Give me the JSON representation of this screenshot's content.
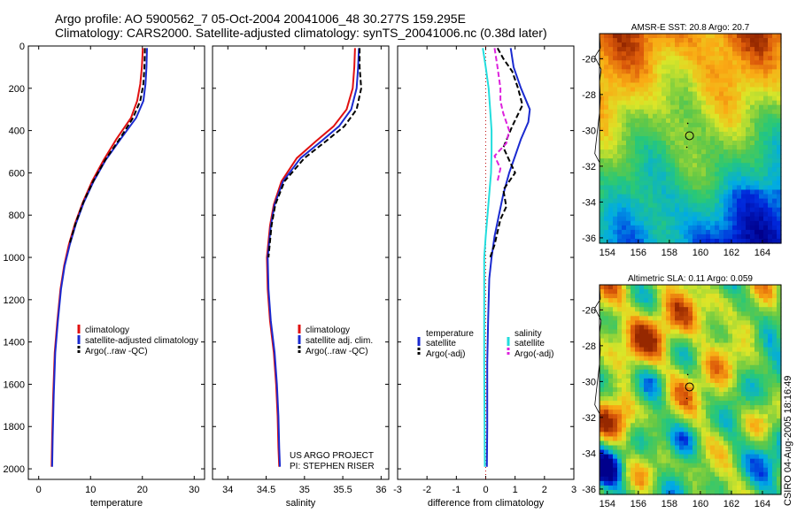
{
  "header": {
    "line1": "Argo profile: AO 5900562_7 05-Oct-2004 20041006_48 30.277S 159.295E",
    "line2": "Climatology: CARS2000. Satellite-adjusted climatology: synTS_20041006.nc (0.38d later)"
  },
  "credit": "CSIRO 04-Aug-2005 18:16:49",
  "colors": {
    "climatology": "#e01010",
    "satellite": "#1a2ad0",
    "argo": "#000000",
    "sal_sat": "#22dddd",
    "sal_argo": "#dd22dd"
  },
  "chart_data": [
    {
      "id": "temperature",
      "type": "line",
      "xlabel": "temperature",
      "ylabel": "",
      "xlim": [
        -2,
        32
      ],
      "ylim": [
        2050,
        0
      ],
      "xticks": [
        0,
        10,
        20,
        30
      ],
      "yticks": [
        0,
        200,
        400,
        600,
        800,
        1000,
        1200,
        1400,
        1600,
        1800,
        2000
      ],
      "series": [
        {
          "name": "climatology",
          "color": "#e01010",
          "dash": "",
          "x": [
            20.1,
            19.9,
            19.6,
            19.0,
            17.8,
            15.0,
            12.5,
            10.3,
            8.5,
            7.0,
            5.8,
            4.9,
            4.2,
            3.6,
            3.1,
            2.8,
            2.6,
            2.5
          ],
          "y": [
            10,
            100,
            180,
            260,
            340,
            440,
            540,
            640,
            740,
            840,
            940,
            1040,
            1150,
            1300,
            1450,
            1650,
            1850,
            1990
          ]
        },
        {
          "name": "satellite-adjusted climatology",
          "color": "#1a2ad0",
          "dash": "",
          "x": [
            20.9,
            20.8,
            20.6,
            20.2,
            18.8,
            15.8,
            12.9,
            10.6,
            8.7,
            7.2,
            6.0,
            5.0,
            4.3,
            3.7,
            3.2,
            2.9,
            2.7,
            2.6
          ],
          "y": [
            10,
            100,
            180,
            260,
            340,
            440,
            540,
            640,
            740,
            840,
            940,
            1040,
            1150,
            1300,
            1450,
            1650,
            1850,
            1990
          ]
        },
        {
          "name": "Argo(..raw -QC)",
          "color": "#000000",
          "dash": "6,3",
          "x": [
            20.5,
            20.4,
            20.2,
            19.6,
            18.2,
            15.6,
            12.8,
            10.5,
            8.6,
            7.1,
            5.9
          ],
          "y": [
            10,
            100,
            180,
            260,
            340,
            440,
            540,
            640,
            740,
            840,
            940
          ]
        }
      ],
      "legend": {
        "entries": [
          "climatology",
          "satellite-adjusted climatology",
          "Argo(..raw -QC)"
        ],
        "placement": "lower-middle"
      }
    },
    {
      "id": "salinity",
      "type": "line",
      "xlabel": "salinity",
      "xlim": [
        33.8,
        36.1
      ],
      "ylim": [
        2050,
        0
      ],
      "xticks": [
        34,
        34.5,
        35,
        35.5,
        36
      ],
      "series": [
        {
          "name": "climatology",
          "color": "#e01010",
          "dash": "",
          "x": [
            35.66,
            35.65,
            35.63,
            35.55,
            35.38,
            35.15,
            34.9,
            34.7,
            34.6,
            34.55,
            34.51,
            34.52,
            34.55,
            34.6,
            34.63,
            34.65,
            34.66,
            34.67
          ],
          "y": [
            10,
            100,
            200,
            300,
            380,
            450,
            530,
            640,
            750,
            850,
            1000,
            1150,
            1300,
            1450,
            1600,
            1750,
            1900,
            1990
          ]
        },
        {
          "name": "satellite adj. clim.",
          "color": "#1a2ad0",
          "dash": "",
          "x": [
            35.71,
            35.7,
            35.68,
            35.61,
            35.45,
            35.22,
            34.95,
            34.72,
            34.61,
            34.56,
            34.52,
            34.53,
            34.56,
            34.61,
            34.64,
            34.66,
            34.67,
            34.68
          ],
          "y": [
            10,
            100,
            200,
            300,
            380,
            450,
            530,
            640,
            750,
            850,
            1000,
            1150,
            1300,
            1450,
            1600,
            1750,
            1900,
            1990
          ]
        },
        {
          "name": "Argo(..raw -QC)",
          "color": "#000000",
          "dash": "6,3",
          "x": [
            35.72,
            35.72,
            35.74,
            35.68,
            35.52,
            35.28,
            35.0,
            34.74,
            34.62,
            34.57,
            34.53
          ],
          "y": [
            10,
            100,
            200,
            300,
            380,
            450,
            530,
            640,
            750,
            850,
            1000
          ]
        }
      ],
      "legend": {
        "entries": [
          "climatology",
          "satellite adj. clim.",
          "Argo(..raw -QC)"
        ],
        "placement": "lower-middle"
      },
      "annotation": [
        "US ARGO PROJECT",
        "PI: STEPHEN RISER"
      ]
    },
    {
      "id": "difference",
      "type": "line",
      "xlabel": "difference from climatology",
      "xlim": [
        -3,
        3
      ],
      "ylim": [
        2050,
        0
      ],
      "xticks": [
        -3,
        -2,
        -1,
        0,
        1,
        2,
        3
      ],
      "series": [
        {
          "name": "temperature satellite",
          "color": "#1a2ad0",
          "dash": "",
          "x": [
            0.85,
            0.95,
            1.2,
            1.5,
            1.45,
            1.2,
            1.0,
            0.8,
            0.6,
            0.45,
            0.3,
            0.2,
            0.12,
            0.08,
            0.05,
            0.05,
            0.04
          ],
          "y": [
            10,
            100,
            200,
            300,
            360,
            440,
            520,
            600,
            700,
            800,
            900,
            1000,
            1100,
            1300,
            1500,
            1800,
            1990
          ]
        },
        {
          "name": "temperature Argo(-adj)",
          "color": "#000000",
          "dash": "6,3",
          "x": [
            0.4,
            0.6,
            0.9,
            1.1,
            1.25,
            0.9,
            0.6,
            0.8,
            1.0,
            0.6,
            0.7,
            0.5,
            0.4,
            0.3,
            0.15
          ],
          "y": [
            10,
            60,
            120,
            200,
            280,
            380,
            480,
            540,
            600,
            680,
            760,
            820,
            880,
            940,
            1000
          ]
        },
        {
          "name": "salinity satellite",
          "color": "#22dddd",
          "dash": "",
          "x": [
            -0.1,
            0.0,
            0.1,
            0.15,
            0.2,
            0.2,
            0.18,
            0.12,
            0.06,
            0.0,
            -0.05,
            -0.05,
            -0.03
          ],
          "y": [
            10,
            100,
            200,
            300,
            400,
            500,
            600,
            700,
            800,
            900,
            1000,
            1500,
            1990
          ]
        },
        {
          "name": "salinity Argo(-adj)",
          "color": "#dd22dd",
          "dash": "6,3",
          "x": [
            0.3,
            0.4,
            0.5,
            0.5,
            0.6,
            0.8,
            0.7,
            0.3,
            0.5,
            0.4
          ],
          "y": [
            10,
            100,
            200,
            260,
            320,
            400,
            460,
            520,
            580,
            640
          ]
        }
      ],
      "legend": {
        "entries": [
          "temperature",
          "satellite",
          "Argo(-adj)",
          "salinity",
          "satellite",
          "Argo(-adj)"
        ],
        "placement": "lower-middle"
      }
    },
    {
      "id": "sst_map",
      "type": "heatmap",
      "title": "AMSR-E SST: 20.8 Argo: 20.7",
      "xlim": [
        153.5,
        165.2
      ],
      "ylim": [
        -36.3,
        -24.6
      ],
      "xticks": [
        154,
        156,
        158,
        160,
        162,
        164
      ],
      "yticks": [
        -26,
        -28,
        -30,
        -32,
        -34,
        -36
      ],
      "float_position": [
        159.3,
        -30.3
      ]
    },
    {
      "id": "sla_map",
      "type": "heatmap",
      "title": "Altimetric SLA: 0.11 Argo: 0.059",
      "xlim": [
        153.5,
        165.2
      ],
      "ylim": [
        -36.3,
        -24.6
      ],
      "xticks": [
        154,
        156,
        158,
        160,
        162,
        164
      ],
      "yticks": [
        -26,
        -28,
        -30,
        -32,
        -34,
        -36
      ],
      "float_position": [
        159.3,
        -30.3
      ]
    }
  ]
}
